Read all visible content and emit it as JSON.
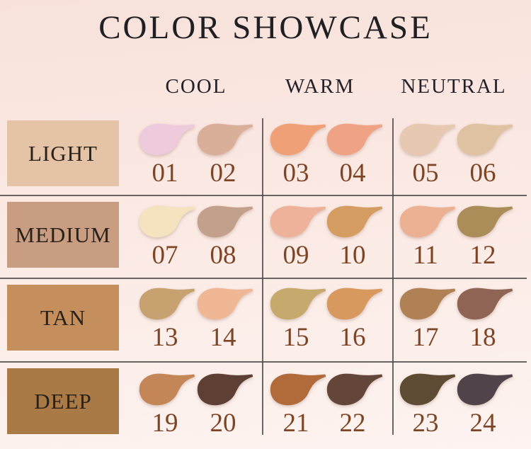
{
  "title": "COLOR SHOWCASE",
  "columns": [
    {
      "label": "COOL"
    },
    {
      "label": "WARM"
    },
    {
      "label": "NEUTRAL"
    }
  ],
  "rows": [
    {
      "label": "LIGHT",
      "label_bg": "#e4c3a7",
      "shades": [
        {
          "number": "01",
          "column": "COOL",
          "color": "#eecadd"
        },
        {
          "number": "02",
          "column": "COOL",
          "color": "#d9af99"
        },
        {
          "number": "03",
          "column": "WARM",
          "color": "#efa077"
        },
        {
          "number": "04",
          "column": "WARM",
          "color": "#f0a285"
        },
        {
          "number": "05",
          "column": "NEUTRAL",
          "color": "#e7c9b2"
        },
        {
          "number": "06",
          "column": "NEUTRAL",
          "color": "#dec2a2"
        }
      ]
    },
    {
      "label": "MEDIUM",
      "label_bg": "#c89d81",
      "shades": [
        {
          "number": "07",
          "column": "COOL",
          "color": "#f5e3c0"
        },
        {
          "number": "08",
          "column": "COOL",
          "color": "#c3a08c"
        },
        {
          "number": "09",
          "column": "WARM",
          "color": "#eeb29a"
        },
        {
          "number": "10",
          "column": "WARM",
          "color": "#d59d62"
        },
        {
          "number": "11",
          "column": "NEUTRAL",
          "color": "#ecb092"
        },
        {
          "number": "12",
          "column": "NEUTRAL",
          "color": "#ab8d5a"
        }
      ]
    },
    {
      "label": "TAN",
      "label_bg": "#c48f5c",
      "shades": [
        {
          "number": "13",
          "column": "COOL",
          "color": "#c7a270"
        },
        {
          "number": "14",
          "column": "COOL",
          "color": "#f0b795"
        },
        {
          "number": "15",
          "column": "WARM",
          "color": "#c6a96c"
        },
        {
          "number": "16",
          "column": "WARM",
          "color": "#d8995f"
        },
        {
          "number": "17",
          "column": "NEUTRAL",
          "color": "#b08155"
        },
        {
          "number": "18",
          "column": "NEUTRAL",
          "color": "#8f6454"
        }
      ]
    },
    {
      "label": "DEEP",
      "label_bg": "#aa7a46",
      "shades": [
        {
          "number": "19",
          "column": "COOL",
          "color": "#c48557"
        },
        {
          "number": "20",
          "column": "COOL",
          "color": "#5d4033"
        },
        {
          "number": "21",
          "column": "WARM",
          "color": "#b16a39"
        },
        {
          "number": "22",
          "column": "WARM",
          "color": "#644539"
        },
        {
          "number": "23",
          "column": "NEUTRAL",
          "color": "#5d4b34"
        },
        {
          "number": "24",
          "column": "NEUTRAL",
          "color": "#504349"
        }
      ]
    }
  ],
  "colors": {
    "background_top": "#f8e1db",
    "background_bottom": "#fdf3f0",
    "grid_line": "#4f4c4b",
    "number_text": "#7d4526",
    "title_text": "#201f23",
    "header_text": "#23222a",
    "label_text": "#2a2118"
  },
  "chart_data": {
    "type": "table",
    "title": "COLOR SHOWCASE",
    "column_groups": [
      "COOL",
      "WARM",
      "NEUTRAL"
    ],
    "row_groups": [
      "LIGHT",
      "MEDIUM",
      "TAN",
      "DEEP"
    ],
    "cells": [
      {
        "row": "LIGHT",
        "column": "COOL",
        "shades": [
          "01",
          "02"
        ],
        "colors": [
          "#eecadd",
          "#d9af99"
        ]
      },
      {
        "row": "LIGHT",
        "column": "WARM",
        "shades": [
          "03",
          "04"
        ],
        "colors": [
          "#efa077",
          "#f0a285"
        ]
      },
      {
        "row": "LIGHT",
        "column": "NEUTRAL",
        "shades": [
          "05",
          "06"
        ],
        "colors": [
          "#e7c9b2",
          "#dec2a2"
        ]
      },
      {
        "row": "MEDIUM",
        "column": "COOL",
        "shades": [
          "07",
          "08"
        ],
        "colors": [
          "#f5e3c0",
          "#c3a08c"
        ]
      },
      {
        "row": "MEDIUM",
        "column": "WARM",
        "shades": [
          "09",
          "10"
        ],
        "colors": [
          "#eeb29a",
          "#d59d62"
        ]
      },
      {
        "row": "MEDIUM",
        "column": "NEUTRAL",
        "shades": [
          "11",
          "12"
        ],
        "colors": [
          "#ecb092",
          "#ab8d5a"
        ]
      },
      {
        "row": "TAN",
        "column": "COOL",
        "shades": [
          "13",
          "14"
        ],
        "colors": [
          "#c7a270",
          "#f0b795"
        ]
      },
      {
        "row": "TAN",
        "column": "WARM",
        "shades": [
          "15",
          "16"
        ],
        "colors": [
          "#c6a96c",
          "#d8995f"
        ]
      },
      {
        "row": "TAN",
        "column": "NEUTRAL",
        "shades": [
          "17",
          "18"
        ],
        "colors": [
          "#b08155",
          "#8f6454"
        ]
      },
      {
        "row": "DEEP",
        "column": "COOL",
        "shades": [
          "19",
          "20"
        ],
        "colors": [
          "#c48557",
          "#5d4033"
        ]
      },
      {
        "row": "DEEP",
        "column": "WARM",
        "shades": [
          "21",
          "22"
        ],
        "colors": [
          "#b16a39",
          "#644539"
        ]
      },
      {
        "row": "DEEP",
        "column": "NEUTRAL",
        "shades": [
          "23",
          "24"
        ],
        "colors": [
          "#5d4b34",
          "#504349"
        ]
      }
    ]
  }
}
